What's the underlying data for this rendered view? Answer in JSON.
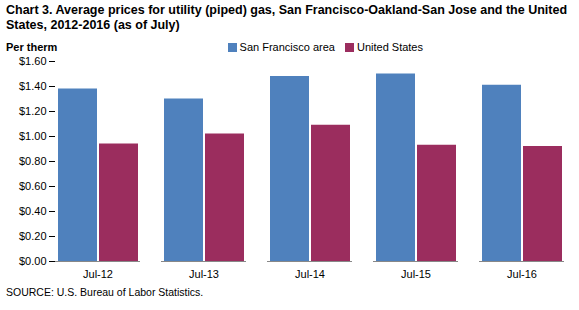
{
  "chart_data": {
    "type": "bar",
    "title": "Chart 3. Average prices for utility (piped) gas, San Francisco-Oakland-San Jose and the United States, 2012-2016 (as of July)",
    "y_label": "Per therm",
    "source": "SOURCE: U.S. Bureau of Labor Statistics.",
    "categories": [
      "Jul-12",
      "Jul-13",
      "Jul-14",
      "Jul-15",
      "Jul-16"
    ],
    "series": [
      {
        "name": "San Francisco area",
        "color": "#4f81bd",
        "values": [
          1.38,
          1.3,
          1.48,
          1.5,
          1.41
        ]
      },
      {
        "name": "United States",
        "color": "#9b2d5e",
        "values": [
          0.94,
          1.02,
          1.09,
          0.93,
          0.92
        ]
      }
    ],
    "ylim": [
      0,
      1.6
    ],
    "yticks": [
      {
        "value": 0,
        "label": "$0.00"
      },
      {
        "value": 0.2,
        "label": "$0.20"
      },
      {
        "value": 0.4,
        "label": "$0.40"
      },
      {
        "value": 0.6,
        "label": "$0.60"
      },
      {
        "value": 0.8,
        "label": "$0.80"
      },
      {
        "value": 1.0,
        "label": "$1.00"
      },
      {
        "value": 1.2,
        "label": "$1.20"
      },
      {
        "value": 1.4,
        "label": "$1.40"
      },
      {
        "value": 1.6,
        "label": "$1.60"
      }
    ],
    "grid": false,
    "legend": "top"
  }
}
